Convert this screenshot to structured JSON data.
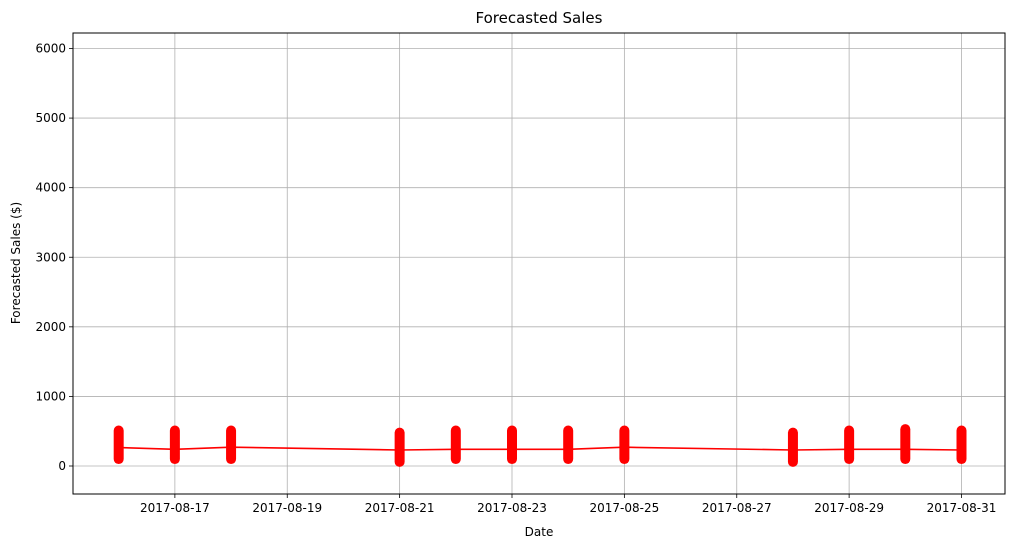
{
  "chart_data": {
    "type": "line",
    "title": "Forecasted Sales",
    "xlabel": "Date",
    "ylabel": "Forecasted Sales ($)",
    "x_ticks": [
      "2017-08-17",
      "2017-08-19",
      "2017-08-21",
      "2017-08-23",
      "2017-08-25",
      "2017-08-27",
      "2017-08-29",
      "2017-08-31"
    ],
    "y_ticks": [
      0,
      1000,
      2000,
      3000,
      4000,
      5000,
      6000
    ],
    "xlim": [
      "2017-08-15",
      "2017-08-31"
    ],
    "ylim": [
      -400,
      6230
    ],
    "grid": true,
    "series": [
      {
        "type": "line",
        "color": "#ff0000",
        "x": [
          "2017-08-16",
          "2017-08-17",
          "2017-08-18",
          "2017-08-21",
          "2017-08-22",
          "2017-08-23",
          "2017-08-24",
          "2017-08-25",
          "2017-08-28",
          "2017-08-29",
          "2017-08-30",
          "2017-08-31"
        ],
        "y": [
          265,
          240,
          270,
          230,
          240,
          240,
          240,
          270,
          230,
          240,
          240,
          230
        ]
      },
      {
        "type": "scatter-range",
        "color": "#ff0000",
        "x": [
          "2017-08-16",
          "2017-08-17",
          "2017-08-18",
          "2017-08-21",
          "2017-08-22",
          "2017-08-23",
          "2017-08-24",
          "2017-08-25",
          "2017-08-28",
          "2017-08-29",
          "2017-08-30",
          "2017-08-31"
        ],
        "y_min": [
          100,
          100,
          100,
          60,
          100,
          100,
          100,
          100,
          60,
          100,
          100,
          100
        ],
        "y_max": [
          510,
          510,
          510,
          480,
          510,
          510,
          510,
          510,
          480,
          510,
          530,
          510
        ]
      }
    ]
  }
}
